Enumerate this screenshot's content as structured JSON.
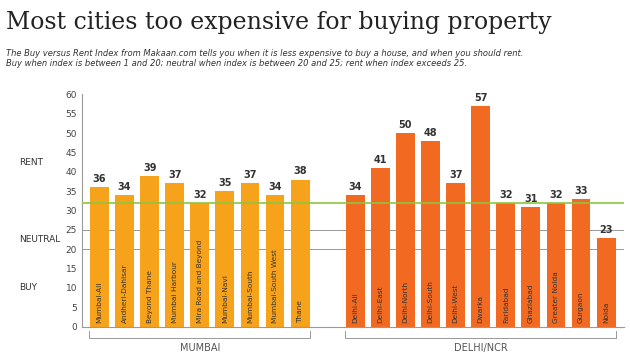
{
  "chart_data": {
    "type": "bar",
    "title": "Most cities too expensive for buying property",
    "subtitle": "The Buy versus Rent Index from Makaan.com tells you when it is less expensive to buy a house, and when you should rent.\nBuy when index is between 1 and 20; neutral when index is between 20 and 25; rent when index exceeds 25.",
    "categories": [
      "Mumbai-All",
      "Andheri-Dahisar",
      "Beyond Thane",
      "Mumbai Harbour",
      "Mira Road and Beyond",
      "Mumbai-Navi",
      "Mumbai-South",
      "Mumbai-South West",
      "Thane",
      "Delhi-All",
      "Delhi-East",
      "Delhi-North",
      "Delhi-South",
      "Delhi-West",
      "Dwarka",
      "Faridabad",
      "Ghaziabad",
      "Greater Noida",
      "Gurgaon",
      "Noida"
    ],
    "values": [
      36,
      34,
      39,
      37,
      32,
      35,
      37,
      34,
      38,
      34,
      41,
      50,
      48,
      37,
      57,
      32,
      31,
      32,
      33,
      23
    ],
    "colors": [
      "#f7a21b",
      "#f7a21b",
      "#f7a21b",
      "#f7a21b",
      "#f7a21b",
      "#f7a21b",
      "#f7a21b",
      "#f7a21b",
      "#f7a21b",
      "#f26a21",
      "#f26a21",
      "#f26a21",
      "#f26a21",
      "#f26a21",
      "#f26a21",
      "#f26a21",
      "#f26a21",
      "#f26a21",
      "#f26a21",
      "#f26a21"
    ],
    "groups": [
      {
        "name": "MUMBAI",
        "count": 9
      },
      {
        "name": "DELHI/NCR",
        "count": 11
      }
    ],
    "bands": [
      {
        "label": "BUY",
        "from": 0,
        "to": 20
      },
      {
        "label": "NEUTRAL",
        "from": 20,
        "to": 25
      },
      {
        "label": "RENT",
        "from": 25,
        "to": 60
      }
    ],
    "reference_line": {
      "value": 32,
      "color": "#8dc63f"
    },
    "ylim": [
      0,
      60
    ],
    "yticks": [
      0,
      5,
      10,
      15,
      20,
      25,
      30,
      35,
      40,
      45,
      50,
      55,
      60
    ],
    "data_labels": true,
    "tick_labels": "y",
    "grid": false
  }
}
